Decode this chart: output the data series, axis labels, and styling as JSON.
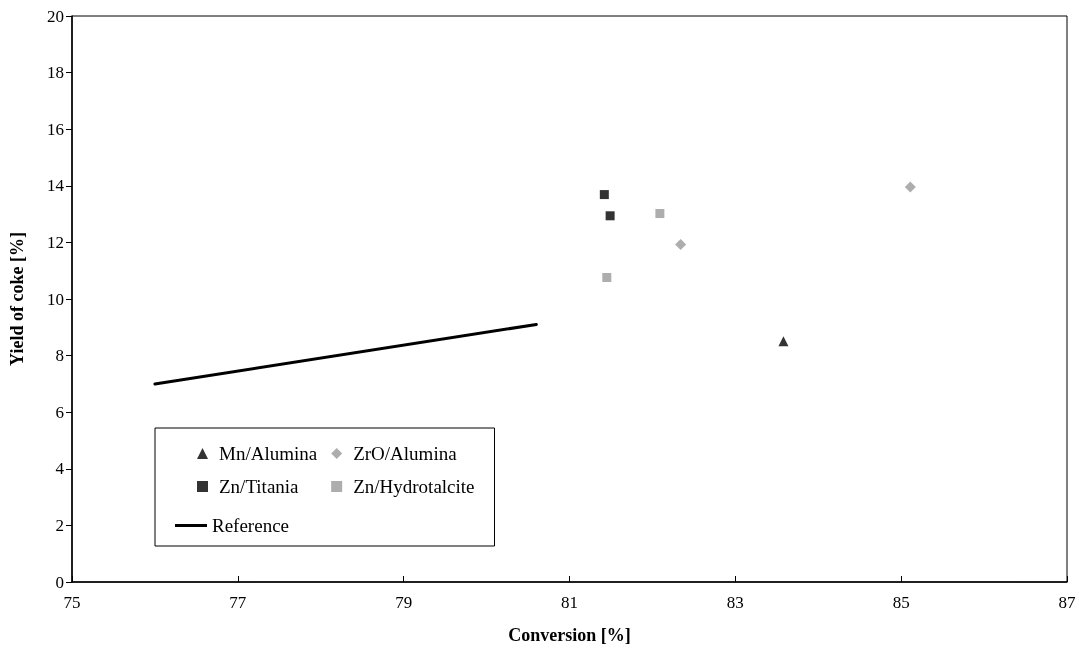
{
  "chart_data": {
    "type": "scatter",
    "xlabel": "Conversion [%]",
    "ylabel": "Yield of coke [%]",
    "xlim": [
      75,
      87
    ],
    "xticks": [
      75,
      77,
      79,
      81,
      83,
      85,
      87
    ],
    "ylim": [
      0,
      20
    ],
    "yticks": [
      0,
      2,
      4,
      6,
      8,
      10,
      12,
      14,
      16,
      18,
      20
    ],
    "legend": "bottom left",
    "series": [
      {
        "name": "Mn/Alumina",
        "color": "#000000",
        "marker": "triangle",
        "x": [
          83.58
        ],
        "values": [
          8.51
        ]
      },
      {
        "name": "Zn/Titania",
        "color": "#000000",
        "marker": "square",
        "x": [
          81.42,
          81.49
        ],
        "values": [
          13.69,
          12.94
        ]
      },
      {
        "name": "Reference",
        "type": "line",
        "color": "#000000",
        "marker": "none",
        "line_style": "solid",
        "x": [
          76.0,
          80.6
        ],
        "values": [
          7.0,
          9.1
        ]
      },
      {
        "name": "ZrO/Alumina",
        "color": "#999999",
        "marker": "diamond",
        "x": [
          82.34,
          85.11
        ],
        "values": [
          11.93,
          13.96
        ]
      },
      {
        "name": "Zn/Hydrotalcite",
        "color": "#999999",
        "marker": "square",
        "x": [
          82.09,
          81.45
        ],
        "values": [
          13.02,
          10.76
        ]
      }
    ]
  }
}
